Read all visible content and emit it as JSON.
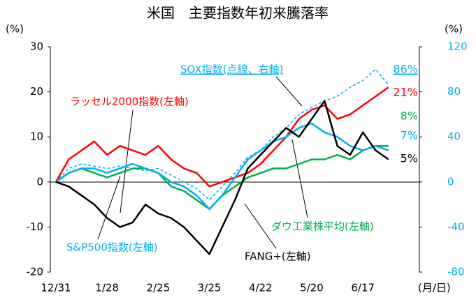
{
  "chart_data": {
    "type": "line",
    "title": "米国　主要指数年初来騰落率",
    "y_unit": "(%)",
    "y2_unit": "(%)",
    "x_label": "(月/日)",
    "categories": [
      "12/31",
      null,
      null,
      null,
      "1/28",
      null,
      null,
      null,
      "2/25",
      null,
      null,
      null,
      "3/25",
      null,
      null,
      null,
      "4/22",
      null,
      null,
      null,
      "5/20",
      null,
      null,
      null,
      "6/17",
      null,
      null
    ],
    "ylim": [
      -20,
      30
    ],
    "yticks": [
      -20,
      -10,
      0,
      10,
      20,
      30
    ],
    "y2lim": [
      -80,
      120
    ],
    "y2ticks": [
      -80,
      -40,
      0,
      40,
      80,
      120
    ],
    "series": [
      {
        "name": "SOX指数(点線、右軸)",
        "color": "#00b0f0",
        "axis": "y2",
        "dashed": true,
        "values": [
          0,
          12,
          16,
          14,
          12,
          14,
          12,
          10,
          12,
          6,
          0,
          -6,
          -16,
          -4,
          8,
          22,
          28,
          40,
          48,
          60,
          66,
          72,
          76,
          84,
          90,
          100,
          86
        ],
        "value_labels": [
          null,
          null,
          null,
          null,
          null,
          null,
          null,
          null,
          null,
          null,
          null,
          null,
          null,
          null,
          null,
          null,
          null,
          null,
          null,
          null,
          null,
          null,
          null,
          null,
          null,
          null,
          "86%"
        ]
      },
      {
        "name": "ラッセル2000指数(左軸)",
        "color": "#ff0000",
        "values": [
          0,
          5,
          7,
          9,
          6,
          8,
          7,
          6,
          8,
          5,
          3,
          2,
          -1,
          0,
          1,
          2,
          4,
          7,
          10,
          14,
          16,
          17,
          14,
          15,
          17,
          19,
          21
        ],
        "value_labels": [
          null,
          null,
          null,
          null,
          null,
          null,
          null,
          null,
          null,
          null,
          null,
          null,
          null,
          null,
          null,
          null,
          null,
          null,
          null,
          null,
          null,
          null,
          null,
          null,
          null,
          null,
          "21%"
        ]
      },
      {
        "name": "ダウ工業株平均(左軸)",
        "color": "#00b050",
        "values": [
          0,
          2,
          3,
          2,
          1,
          2,
          3,
          3,
          2,
          -1,
          -2,
          -4,
          -6,
          -3,
          -1,
          1,
          2,
          3,
          3,
          4,
          5,
          5,
          6,
          5,
          7,
          8,
          8
        ],
        "value_labels": [
          null,
          null,
          null,
          null,
          null,
          null,
          null,
          null,
          null,
          null,
          null,
          null,
          null,
          null,
          null,
          null,
          null,
          null,
          null,
          null,
          null,
          null,
          null,
          null,
          null,
          null,
          "8%"
        ]
      },
      {
        "name": "S&P500指数(左軸)",
        "color": "#00b0f0",
        "values": [
          0,
          2,
          3,
          3,
          2,
          3,
          4,
          3,
          2,
          0,
          -1,
          -3,
          -6,
          -3,
          1,
          5,
          7,
          9,
          10,
          12,
          13,
          11,
          10,
          8,
          7,
          8,
          7
        ],
        "value_labels": [
          null,
          null,
          null,
          null,
          null,
          null,
          null,
          null,
          null,
          null,
          null,
          null,
          null,
          null,
          null,
          null,
          null,
          null,
          null,
          null,
          null,
          null,
          null,
          null,
          null,
          null,
          "7%"
        ]
      },
      {
        "name": "FANG+(左軸)",
        "color": "#000000",
        "values": [
          0,
          -1,
          -3,
          -5,
          -8,
          -10,
          -9,
          -5,
          -7,
          -8,
          -10,
          -13,
          -16,
          -10,
          -4,
          3,
          6,
          9,
          12,
          10,
          14,
          18,
          8,
          6,
          11,
          7,
          5
        ],
        "value_labels": [
          null,
          null,
          null,
          null,
          null,
          null,
          null,
          null,
          null,
          null,
          null,
          null,
          null,
          null,
          null,
          null,
          null,
          null,
          null,
          null,
          null,
          null,
          null,
          null,
          null,
          null,
          "5%"
        ]
      }
    ]
  }
}
